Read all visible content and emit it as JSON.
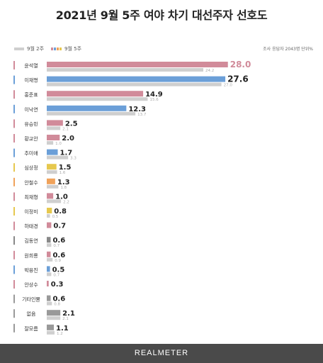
{
  "title": "2021년 9월 5주 여야 차기 대선주자 선호도",
  "legend": {
    "prev_label": "9월 2주",
    "curr_label": "9월 5주"
  },
  "note": "조사 응답자 2043명 단위%",
  "footer": "REALMETER",
  "chart_data": {
    "type": "bar",
    "orientation": "horizontal",
    "categories": [
      "윤석열",
      "이재명",
      "홍준표",
      "이낙연",
      "유승민",
      "황교안",
      "추미애",
      "심상정",
      "안철수",
      "최재형",
      "이정미",
      "하태경",
      "김동연",
      "원희룡",
      "박용진",
      "안상수",
      "기타인물",
      "없음",
      "잘모름"
    ],
    "series": [
      {
        "name": "9월 5주",
        "values": [
          28.0,
          27.6,
          14.9,
          12.3,
          2.5,
          2.0,
          1.7,
          1.5,
          1.3,
          1.0,
          0.8,
          0.7,
          0.6,
          0.6,
          0.5,
          0.3,
          0.6,
          2.1,
          1.1
        ]
      },
      {
        "name": "9월 2주",
        "values": [
          24.2,
          27.0,
          15.6,
          13.7,
          2.1,
          1.0,
          3.3,
          1.6,
          1.8,
          2.2,
          0.5,
          null,
          0.7,
          0.9,
          0.7,
          null,
          0.8,
          2.1,
          1.2
        ]
      }
    ],
    "colors": [
      "#d18b9a",
      "#6b9fd8",
      "#d18b9a",
      "#6b9fd8",
      "#d18b9a",
      "#d18b9a",
      "#6b9fd8",
      "#e6c84e",
      "#f0a25a",
      "#d18b9a",
      "#e6c84e",
      "#d18b9a",
      "#888888",
      "#d18b9a",
      "#6b9fd8",
      "#d18b9a",
      "#999999",
      "#999999",
      "#999999"
    ],
    "prev_color": "#cfcfcf",
    "label_colors": [
      "#d18b9a",
      "#222222",
      "#222222",
      "#222222",
      "#222222",
      "#222222",
      "#222222",
      "#222222",
      "#222222",
      "#222222",
      "#222222",
      "#222222",
      "#222222",
      "#222222",
      "#222222",
      "#222222",
      "#222222",
      "#222222",
      "#222222"
    ],
    "xlim": [
      0,
      30
    ]
  }
}
